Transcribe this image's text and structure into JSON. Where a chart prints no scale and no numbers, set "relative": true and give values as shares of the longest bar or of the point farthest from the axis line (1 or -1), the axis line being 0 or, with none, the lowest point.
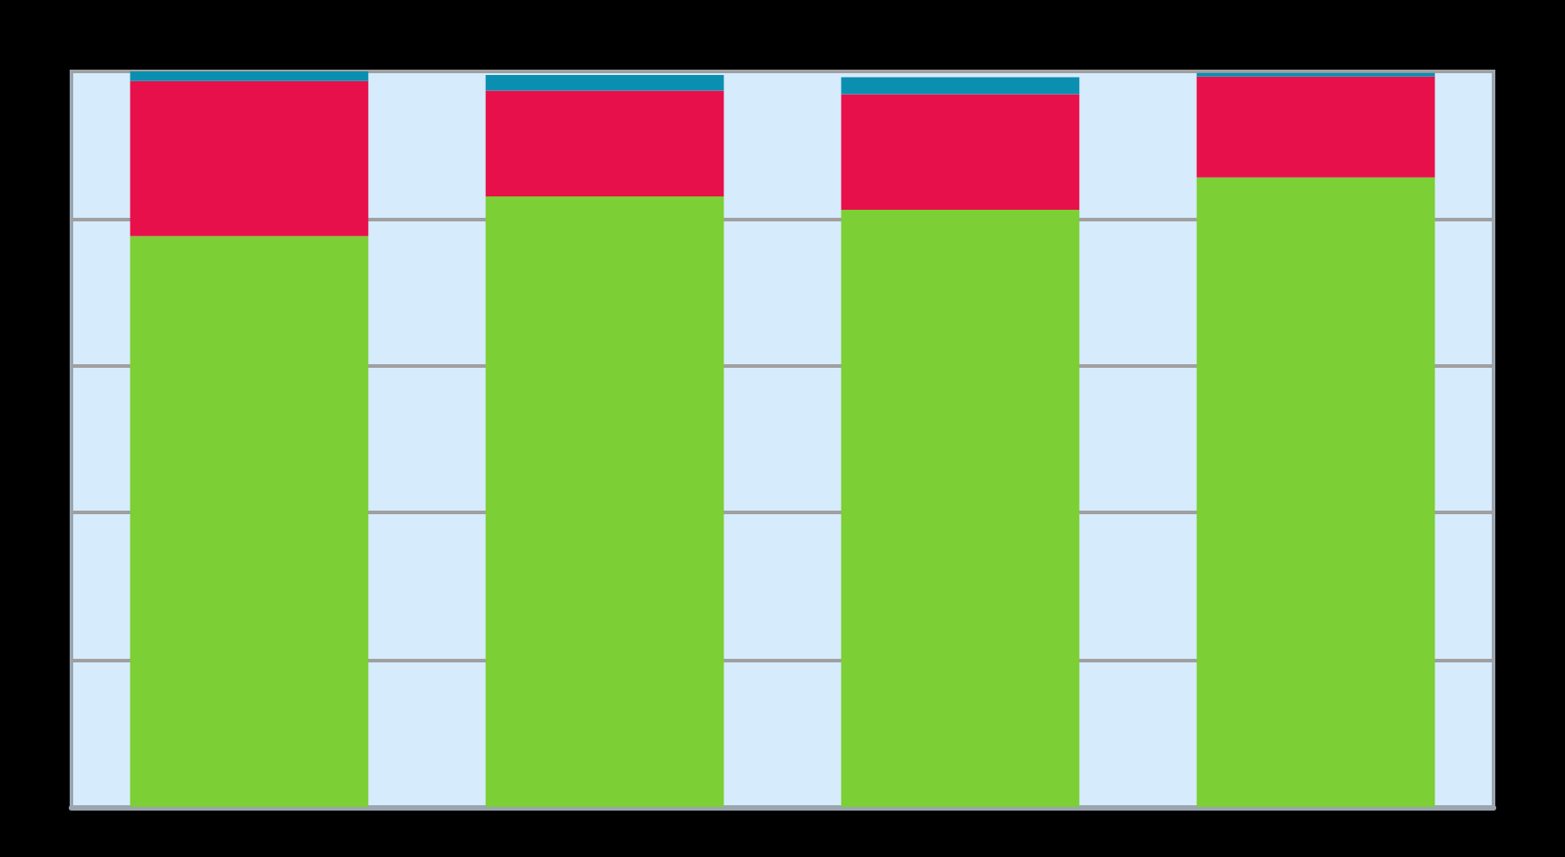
{
  "chart_data": {
    "type": "bar",
    "stacked": true,
    "relative": true,
    "grid": "y",
    "categories": [
      null,
      null,
      null,
      null
    ],
    "series": [
      {
        "color": "#7ccf35",
        "values": [
          0.776,
          0.83,
          0.812,
          0.856
        ]
      },
      {
        "color": "#e8104a",
        "values": [
          0.211,
          0.144,
          0.157,
          0.137
        ]
      },
      {
        "color": "#0a8fb0",
        "values": [
          0.013,
          0.021,
          0.023,
          0.005
        ]
      }
    ]
  }
}
